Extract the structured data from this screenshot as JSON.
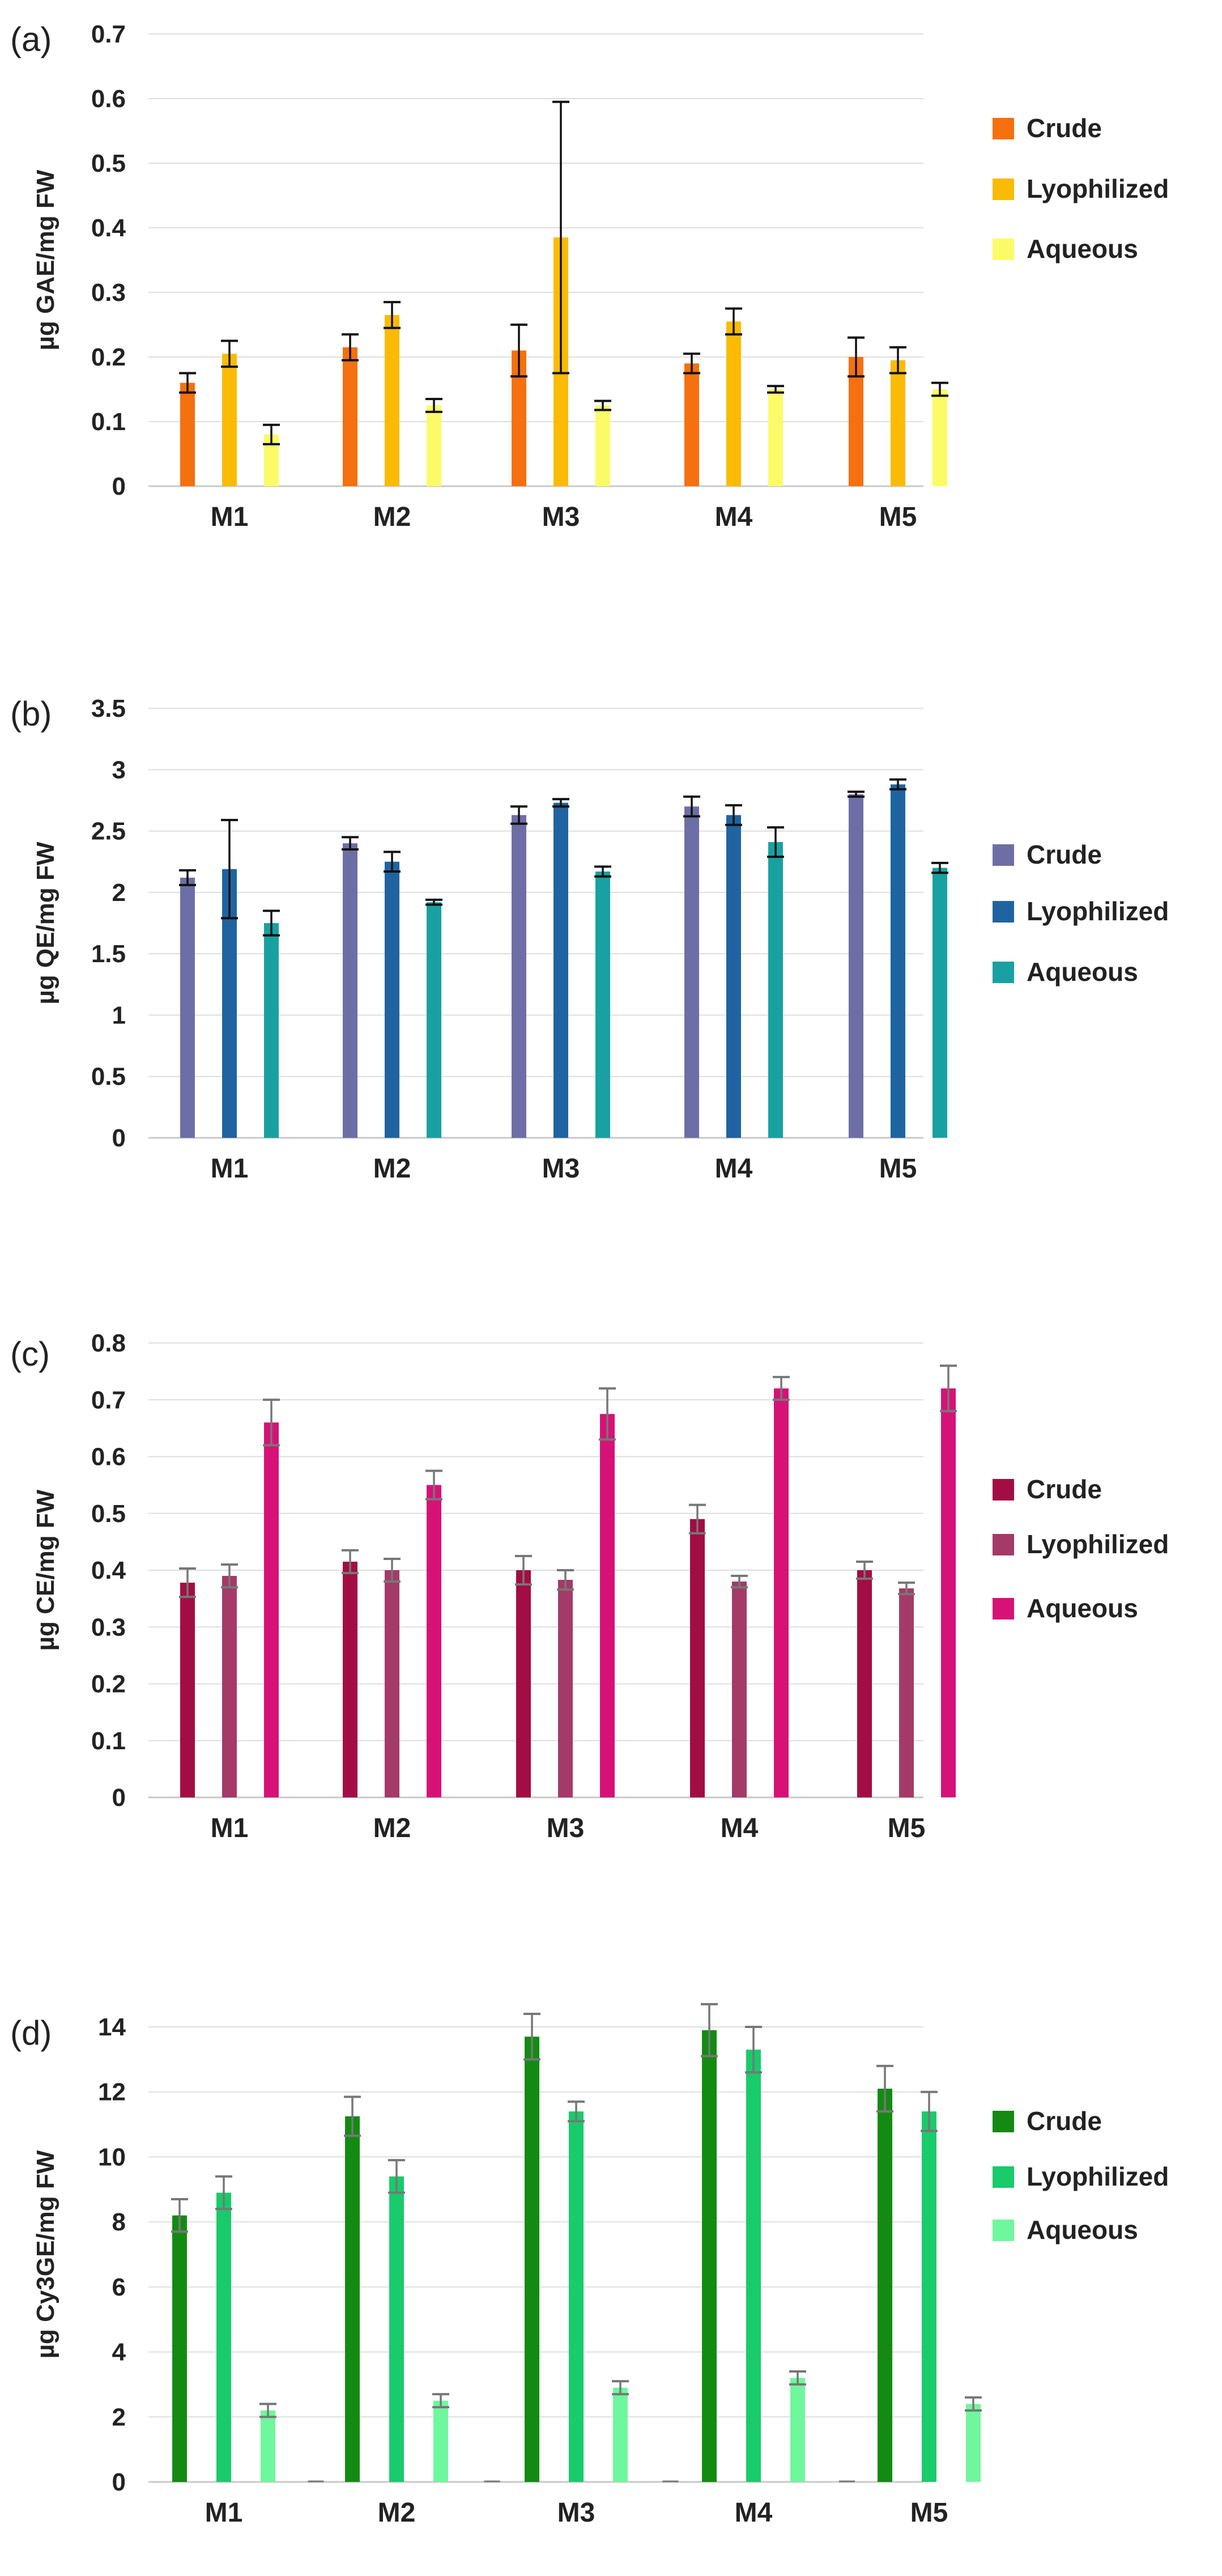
{
  "chart_data": [
    {
      "type": "bar",
      "panel_label": "(a)",
      "ylabel": "µg GAE/mg FW",
      "ylim": [
        0,
        0.7
      ],
      "yticks": [
        "0",
        "0.1",
        "0.2",
        "0.3",
        "0.4",
        "0.5",
        "0.6",
        "0.7"
      ],
      "grid": true,
      "legend_position": "right",
      "categories": [
        "M1",
        "M2",
        "M3",
        "M4",
        "M5"
      ],
      "series": [
        {
          "name": "Crude",
          "color": "#f5700e",
          "values": [
            0.16,
            0.215,
            0.21,
            0.19,
            0.2
          ],
          "errors": [
            0.015,
            0.02,
            0.04,
            0.015,
            0.03
          ]
        },
        {
          "name": "Lyophilized",
          "color": "#fbbb04",
          "values": [
            0.205,
            0.265,
            0.385,
            0.255,
            0.195
          ],
          "errors": [
            0.02,
            0.02,
            0.21,
            0.02,
            0.02
          ]
        },
        {
          "name": "Aqueous",
          "color": "#fbfb68",
          "values": [
            0.08,
            0.125,
            0.125,
            0.15,
            0.15
          ],
          "errors": [
            0.015,
            0.01,
            0.007,
            0.005,
            0.01
          ]
        }
      ],
      "error_color": "#111111"
    },
    {
      "type": "bar",
      "panel_label": "(b)",
      "ylabel": "µg QE/mg FW",
      "ylim": [
        0,
        3.5
      ],
      "yticks": [
        "0",
        "0.5",
        "1",
        "1.5",
        "2",
        "2.5",
        "3",
        "3.5"
      ],
      "grid": true,
      "legend_position": "right",
      "categories": [
        "M1",
        "M2",
        "M3",
        "M4",
        "M5"
      ],
      "series": [
        {
          "name": "Crude",
          "color": "#6e6ea6",
          "values": [
            2.12,
            2.4,
            2.63,
            2.7,
            2.8
          ],
          "errors": [
            0.06,
            0.05,
            0.07,
            0.08,
            0.02
          ]
        },
        {
          "name": "Lyophilized",
          "color": "#1f64a0",
          "values": [
            2.19,
            2.25,
            2.73,
            2.63,
            2.88
          ],
          "errors": [
            0.4,
            0.08,
            0.03,
            0.08,
            0.04
          ]
        },
        {
          "name": "Aqueous",
          "color": "#19a1a1",
          "values": [
            1.75,
            1.92,
            2.17,
            2.41,
            2.2
          ],
          "errors": [
            0.1,
            0.02,
            0.04,
            0.12,
            0.04
          ]
        }
      ],
      "error_color": "#111111"
    },
    {
      "type": "bar",
      "panel_label": "(c)",
      "ylabel": "µg CE/mg FW",
      "ylim": [
        0,
        0.8
      ],
      "yticks": [
        "0",
        "0.1",
        "0.2",
        "0.3",
        "0.4",
        "0.5",
        "0.6",
        "0.7",
        "0.8"
      ],
      "grid": true,
      "legend_position": "right",
      "categories": [
        "M1",
        "M2",
        "M3",
        "M4",
        "M5"
      ],
      "series": [
        {
          "name": "Crude",
          "color": "#a20d44",
          "values": [
            0.378,
            0.415,
            0.4,
            0.49,
            0.4
          ],
          "errors": [
            0.025,
            0.02,
            0.025,
            0.025,
            0.015
          ]
        },
        {
          "name": "Lyophilized",
          "color": "#a43a68",
          "values": [
            0.39,
            0.4,
            0.383,
            0.38,
            0.368
          ],
          "errors": [
            0.02,
            0.02,
            0.017,
            0.01,
            0.01
          ]
        },
        {
          "name": "Aqueous",
          "color": "#d61277",
          "values": [
            0.66,
            0.55,
            0.675,
            0.72,
            0.72
          ],
          "errors": [
            0.04,
            0.025,
            0.045,
            0.02,
            0.04
          ]
        }
      ],
      "error_color": "#777777"
    },
    {
      "type": "bar",
      "panel_label": "(d)",
      "ylabel": "µg Cy3GE/mg FW",
      "ylim": [
        0,
        14
      ],
      "yticks": [
        "0",
        "2",
        "4",
        "6",
        "8",
        "10",
        "12",
        "14"
      ],
      "grid": true,
      "legend_position": "right",
      "categories": [
        "M1",
        "M2",
        "M3",
        "M4",
        "M5"
      ],
      "series": [
        {
          "name": "Crude",
          "color": "#138b13",
          "values": [
            8.2,
            11.25,
            13.7,
            13.9,
            12.1
          ],
          "errors": [
            0.5,
            0.6,
            0.7,
            0.8,
            0.7
          ]
        },
        {
          "name": "Lyophilized",
          "color": "#19cb6b",
          "values": [
            8.9,
            9.4,
            11.4,
            13.3,
            11.4
          ],
          "errors": [
            0.5,
            0.5,
            0.3,
            0.7,
            0.6
          ]
        },
        {
          "name": "Aqueous",
          "color": "#6ff79d",
          "values": [
            2.2,
            2.5,
            2.9,
            3.2,
            2.4
          ],
          "errors": [
            0.2,
            0.2,
            0.2,
            0.2,
            0.2
          ]
        }
      ],
      "error_color": "#777777"
    }
  ]
}
